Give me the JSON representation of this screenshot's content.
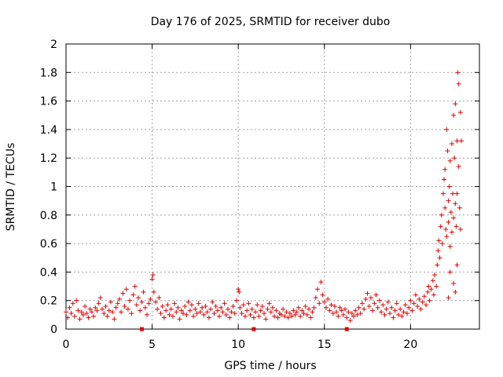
{
  "chart_data": {
    "type": "scatter",
    "title": "Day 176 of 2025, SRMTID for receiver dubo",
    "xlabel": "GPS time / hours",
    "ylabel": "SRMTID / TECUs",
    "xlim": [
      0,
      24
    ],
    "ylim": [
      0,
      2
    ],
    "x_ticks": [
      0,
      5,
      10,
      15,
      20
    ],
    "x_tick_labels": [
      "0",
      "5",
      "10",
      "15",
      "20"
    ],
    "y_ticks": [
      0,
      0.2,
      0.4,
      0.6,
      0.8,
      1.0,
      1.2,
      1.4,
      1.6,
      1.8,
      2.0
    ],
    "y_tick_labels": [
      "0",
      "0.2",
      "0.4",
      "0.6",
      "0.8",
      "1",
      "1.2",
      "1.4",
      "1.6",
      "1.8",
      "2"
    ],
    "grid": true,
    "marker": "+",
    "color": "#e00000",
    "series": [
      {
        "name": "SRMTID",
        "points": [
          [
            0.0,
            0.12
          ],
          [
            0.1,
            0.08
          ],
          [
            0.2,
            0.15
          ],
          [
            0.3,
            0.11
          ],
          [
            0.4,
            0.18
          ],
          [
            0.5,
            0.09
          ],
          [
            0.6,
            0.2
          ],
          [
            0.7,
            0.13
          ],
          [
            0.8,
            0.07
          ],
          [
            0.9,
            0.12
          ],
          [
            1.0,
            0.1
          ],
          [
            1.1,
            0.16
          ],
          [
            1.2,
            0.11
          ],
          [
            1.3,
            0.08
          ],
          [
            1.4,
            0.14
          ],
          [
            1.5,
            0.12
          ],
          [
            1.6,
            0.09
          ],
          [
            1.7,
            0.15
          ],
          [
            1.8,
            0.13
          ],
          [
            1.9,
            0.18
          ],
          [
            2.0,
            0.22
          ],
          [
            2.1,
            0.14
          ],
          [
            2.2,
            0.11
          ],
          [
            2.3,
            0.16
          ],
          [
            2.4,
            0.09
          ],
          [
            2.5,
            0.13
          ],
          [
            2.6,
            0.19
          ],
          [
            2.7,
            0.12
          ],
          [
            2.8,
            0.07
          ],
          [
            2.9,
            0.15
          ],
          [
            3.0,
            0.18
          ],
          [
            3.1,
            0.21
          ],
          [
            3.2,
            0.12
          ],
          [
            3.3,
            0.25
          ],
          [
            3.4,
            0.16
          ],
          [
            3.5,
            0.28
          ],
          [
            3.6,
            0.14
          ],
          [
            3.7,
            0.2
          ],
          [
            3.8,
            0.11
          ],
          [
            3.9,
            0.24
          ],
          [
            4.0,
            0.3
          ],
          [
            4.1,
            0.17
          ],
          [
            4.2,
            0.22
          ],
          [
            4.3,
            0.13
          ],
          [
            4.4,
            0.19
          ],
          [
            4.5,
            0.26
          ],
          [
            4.6,
            0.15
          ],
          [
            4.7,
            0.1
          ],
          [
            4.8,
            0.18
          ],
          [
            4.9,
            0.21
          ],
          [
            5.0,
            0.35
          ],
          [
            5.05,
            0.38
          ],
          [
            5.1,
            0.26
          ],
          [
            5.2,
            0.19
          ],
          [
            5.3,
            0.14
          ],
          [
            5.4,
            0.22
          ],
          [
            5.5,
            0.11
          ],
          [
            5.6,
            0.16
          ],
          [
            5.7,
            0.08
          ],
          [
            5.8,
            0.13
          ],
          [
            5.9,
            0.17
          ],
          [
            6.0,
            0.1
          ],
          [
            6.1,
            0.14
          ],
          [
            6.2,
            0.09
          ],
          [
            6.3,
            0.18
          ],
          [
            6.4,
            0.12
          ],
          [
            6.5,
            0.15
          ],
          [
            6.6,
            0.07
          ],
          [
            6.7,
            0.13
          ],
          [
            6.8,
            0.11
          ],
          [
            6.9,
            0.16
          ],
          [
            7.0,
            0.1
          ],
          [
            7.1,
            0.19
          ],
          [
            7.2,
            0.13
          ],
          [
            7.3,
            0.17
          ],
          [
            7.4,
            0.09
          ],
          [
            7.5,
            0.14
          ],
          [
            7.6,
            0.11
          ],
          [
            7.7,
            0.18
          ],
          [
            7.8,
            0.12
          ],
          [
            7.9,
            0.15
          ],
          [
            8.0,
            0.1
          ],
          [
            8.1,
            0.16
          ],
          [
            8.2,
            0.12
          ],
          [
            8.3,
            0.08
          ],
          [
            8.4,
            0.14
          ],
          [
            8.5,
            0.19
          ],
          [
            8.6,
            0.11
          ],
          [
            8.7,
            0.16
          ],
          [
            8.8,
            0.13
          ],
          [
            8.9,
            0.09
          ],
          [
            9.0,
            0.15
          ],
          [
            9.1,
            0.12
          ],
          [
            9.2,
            0.18
          ],
          [
            9.3,
            0.1
          ],
          [
            9.4,
            0.14
          ],
          [
            9.5,
            0.08
          ],
          [
            9.6,
            0.12
          ],
          [
            9.7,
            0.16
          ],
          [
            9.8,
            0.11
          ],
          [
            9.9,
            0.2
          ],
          [
            10.0,
            0.28
          ],
          [
            10.05,
            0.26
          ],
          [
            10.1,
            0.15
          ],
          [
            10.2,
            0.11
          ],
          [
            10.3,
            0.17
          ],
          [
            10.4,
            0.09
          ],
          [
            10.5,
            0.13
          ],
          [
            10.6,
            0.18
          ],
          [
            10.7,
            0.1
          ],
          [
            10.8,
            0.14
          ],
          [
            10.9,
            0.08
          ],
          [
            11.0,
            0.12
          ],
          [
            11.1,
            0.17
          ],
          [
            11.2,
            0.09
          ],
          [
            11.3,
            0.13
          ],
          [
            11.4,
            0.16
          ],
          [
            11.5,
            0.11
          ],
          [
            11.6,
            0.07
          ],
          [
            11.7,
            0.14
          ],
          [
            11.8,
            0.18
          ],
          [
            11.9,
            0.12
          ],
          [
            12.0,
            0.15
          ],
          [
            12.1,
            0.09
          ],
          [
            12.2,
            0.13
          ],
          [
            12.3,
            0.08
          ],
          [
            12.4,
            0.11
          ],
          [
            12.5,
            0.1
          ],
          [
            12.6,
            0.14
          ],
          [
            12.7,
            0.09
          ],
          [
            12.8,
            0.12
          ],
          [
            12.9,
            0.08
          ],
          [
            13.0,
            0.11
          ],
          [
            13.1,
            0.09
          ],
          [
            13.2,
            0.13
          ],
          [
            13.3,
            0.1
          ],
          [
            13.4,
            0.12
          ],
          [
            13.5,
            0.15
          ],
          [
            13.6,
            0.09
          ],
          [
            13.7,
            0.13
          ],
          [
            13.8,
            0.11
          ],
          [
            13.9,
            0.16
          ],
          [
            14.0,
            0.1
          ],
          [
            14.1,
            0.14
          ],
          [
            14.2,
            0.08
          ],
          [
            14.3,
            0.12
          ],
          [
            14.4,
            0.15
          ],
          [
            14.5,
            0.22
          ],
          [
            14.6,
            0.28
          ],
          [
            14.7,
            0.18
          ],
          [
            14.8,
            0.33
          ],
          [
            14.9,
            0.24
          ],
          [
            15.0,
            0.19
          ],
          [
            15.1,
            0.15
          ],
          [
            15.2,
            0.21
          ],
          [
            15.3,
            0.13
          ],
          [
            15.4,
            0.17
          ],
          [
            15.5,
            0.11
          ],
          [
            15.6,
            0.16
          ],
          [
            15.7,
            0.12
          ],
          [
            15.8,
            0.09
          ],
          [
            15.9,
            0.15
          ],
          [
            16.0,
            0.13
          ],
          [
            16.1,
            0.1
          ],
          [
            16.2,
            0.14
          ],
          [
            16.3,
            0.08
          ],
          [
            16.4,
            0.12
          ],
          [
            16.5,
            0.06
          ],
          [
            16.6,
            0.11
          ],
          [
            16.7,
            0.09
          ],
          [
            16.8,
            0.13
          ],
          [
            16.9,
            0.1
          ],
          [
            17.0,
            0.15
          ],
          [
            17.1,
            0.11
          ],
          [
            17.2,
            0.18
          ],
          [
            17.3,
            0.14
          ],
          [
            17.4,
            0.21
          ],
          [
            17.5,
            0.25
          ],
          [
            17.6,
            0.16
          ],
          [
            17.7,
            0.22
          ],
          [
            17.8,
            0.13
          ],
          [
            17.9,
            0.18
          ],
          [
            18.0,
            0.24
          ],
          [
            18.1,
            0.15
          ],
          [
            18.2,
            0.2
          ],
          [
            18.3,
            0.12
          ],
          [
            18.4,
            0.17
          ],
          [
            18.5,
            0.1
          ],
          [
            18.6,
            0.14
          ],
          [
            18.7,
            0.19
          ],
          [
            18.8,
            0.11
          ],
          [
            18.9,
            0.15
          ],
          [
            19.0,
            0.08
          ],
          [
            19.1,
            0.13
          ],
          [
            19.2,
            0.18
          ],
          [
            19.3,
            0.1
          ],
          [
            19.4,
            0.14
          ],
          [
            19.5,
            0.09
          ],
          [
            19.6,
            0.12
          ],
          [
            19.7,
            0.17
          ],
          [
            19.8,
            0.11
          ],
          [
            19.9,
            0.15
          ],
          [
            20.0,
            0.2
          ],
          [
            20.1,
            0.13
          ],
          [
            20.2,
            0.18
          ],
          [
            20.3,
            0.24
          ],
          [
            20.4,
            0.16
          ],
          [
            20.5,
            0.21
          ],
          [
            20.6,
            0.14
          ],
          [
            20.7,
            0.19
          ],
          [
            20.8,
            0.23
          ],
          [
            20.9,
            0.17
          ],
          [
            21.0,
            0.26
          ],
          [
            21.05,
            0.3
          ],
          [
            21.1,
            0.2
          ],
          [
            21.2,
            0.28
          ],
          [
            21.3,
            0.34
          ],
          [
            21.35,
            0.24
          ],
          [
            21.4,
            0.38
          ],
          [
            21.5,
            0.3
          ],
          [
            21.55,
            0.45
          ],
          [
            21.6,
            0.55
          ],
          [
            21.65,
            0.62
          ],
          [
            21.7,
            0.5
          ],
          [
            21.75,
            0.72
          ],
          [
            21.8,
            0.8
          ],
          [
            21.85,
            0.6
          ],
          [
            21.9,
            0.95
          ],
          [
            21.95,
            1.05
          ],
          [
            22.0,
            0.85
          ],
          [
            22.0,
            1.12
          ],
          [
            22.05,
            0.7
          ],
          [
            22.1,
            1.4
          ],
          [
            22.1,
            0.65
          ],
          [
            22.15,
            1.25
          ],
          [
            22.2,
            0.9
          ],
          [
            22.2,
            0.75
          ],
          [
            22.25,
            1.0
          ],
          [
            22.3,
            0.58
          ],
          [
            22.3,
            1.18
          ],
          [
            22.35,
            0.82
          ],
          [
            22.4,
            1.3
          ],
          [
            22.4,
            0.68
          ],
          [
            22.45,
            0.95
          ],
          [
            22.5,
            1.5
          ],
          [
            22.5,
            0.78
          ],
          [
            22.55,
            1.2
          ],
          [
            22.6,
            0.88
          ],
          [
            22.6,
            1.58
          ],
          [
            22.65,
            0.72
          ],
          [
            22.7,
            1.32
          ],
          [
            22.7,
            0.95
          ],
          [
            22.75,
            1.8
          ],
          [
            22.8,
            1.72
          ],
          [
            22.8,
            1.14
          ],
          [
            22.85,
            0.85
          ],
          [
            22.9,
            1.52
          ],
          [
            22.9,
            0.7
          ],
          [
            22.95,
            1.32
          ],
          [
            22.5,
            0.32
          ],
          [
            22.6,
            0.26
          ],
          [
            22.3,
            0.4
          ],
          [
            22.7,
            0.45
          ],
          [
            22.2,
            0.22
          ]
        ]
      }
    ],
    "annotations": [
      {
        "type": "marker_on_axis",
        "x": 4.4,
        "y": 0
      },
      {
        "type": "marker_on_axis",
        "x": 10.9,
        "y": 0
      },
      {
        "type": "marker_on_axis",
        "x": 16.3,
        "y": 0
      }
    ]
  }
}
